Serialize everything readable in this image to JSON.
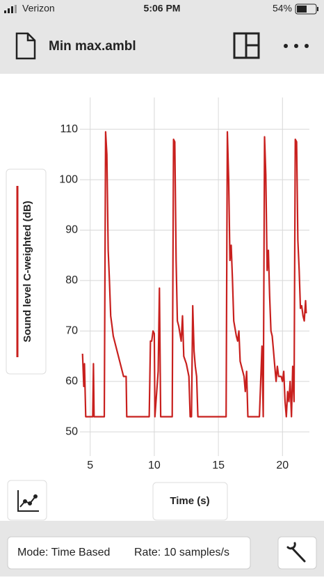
{
  "status_bar": {
    "carrier": "Verizon",
    "time": "5:06 PM",
    "battery": "54%"
  },
  "toolbar": {
    "title": "Min max.ambl"
  },
  "chart_data": {
    "type": "line",
    "x_label": "Time (s)",
    "x": [
      4.4,
      4.5,
      4.55,
      4.65,
      5.2,
      5.25,
      5.3,
      6.1,
      6.2,
      6.3,
      6.4,
      6.5,
      6.6,
      6.7,
      6.8,
      7.0,
      7.2,
      7.4,
      7.6,
      7.8,
      7.85,
      9.6,
      9.7,
      9.8,
      9.9,
      10.0,
      10.05,
      10.3,
      10.4,
      10.5,
      11.4,
      11.5,
      11.6,
      11.7,
      11.8,
      11.9,
      12.1,
      12.2,
      12.3,
      12.5,
      12.7,
      12.8,
      12.9,
      13.0,
      13.1,
      13.2,
      13.3,
      13.4,
      15.6,
      15.7,
      15.8,
      15.9,
      16.0,
      16.1,
      16.2,
      16.4,
      16.5,
      16.6,
      16.7,
      16.9,
      17.0,
      17.1,
      17.2,
      17.3,
      18.2,
      18.4,
      18.5,
      18.6,
      18.7,
      18.8,
      18.9,
      19.0,
      19.1,
      19.2,
      19.3,
      19.4,
      19.5,
      19.6,
      19.7,
      19.9,
      20.0,
      20.1,
      20.2,
      20.3,
      20.4,
      20.5,
      20.6,
      20.7,
      20.8,
      20.9,
      21.0,
      21.1,
      21.2,
      21.3,
      21.4,
      21.5,
      21.6,
      21.7,
      21.8,
      21.85
    ],
    "series": [
      {
        "name": "Sound level C-weighted (dB)",
        "color": "#c8201e",
        "values": [
          65.5,
          59,
          63.5,
          53,
          53,
          63.5,
          53,
          53,
          109.5,
          105,
          86,
          80,
          73,
          71,
          69,
          67,
          65,
          63,
          61,
          61,
          53,
          53,
          68,
          68,
          70,
          69.5,
          53,
          62,
          78.5,
          53,
          53,
          108,
          107.5,
          84,
          72,
          71,
          68,
          73,
          65,
          63.5,
          61,
          53,
          53,
          75,
          66,
          63,
          61,
          53,
          53,
          109.5,
          100,
          84,
          87,
          80,
          72,
          69,
          68,
          70,
          64,
          62,
          61,
          58,
          62,
          53,
          53,
          67,
          53,
          108.5,
          101,
          82,
          86,
          77,
          70,
          69,
          66,
          63,
          60,
          63,
          61,
          61,
          60,
          62,
          56,
          53,
          58,
          56,
          60,
          53,
          63,
          56,
          108,
          107.5,
          88,
          82,
          74.5,
          75,
          73,
          72,
          76,
          73.5
        ]
      }
    ],
    "xlim": [
      4.2,
      22.1
    ],
    "ylim": [
      45.2,
      116.3
    ],
    "xticks": [
      5,
      10,
      15,
      20
    ],
    "yticks": [
      50,
      60,
      70,
      80,
      90,
      100,
      110
    ],
    "grid": true
  },
  "footer": {
    "mode": "Mode: Time Based",
    "rate": "Rate: 10 samples/s"
  }
}
